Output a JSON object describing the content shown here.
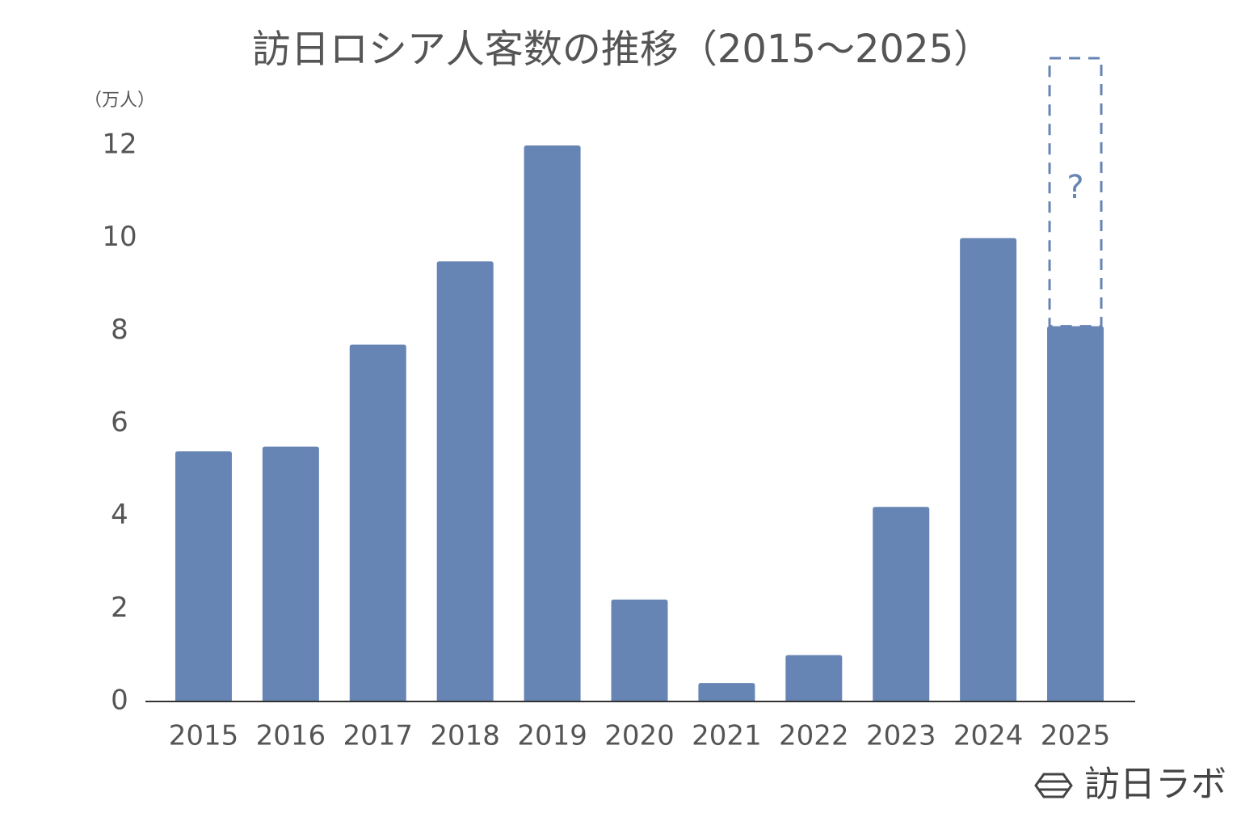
{
  "chart_data": {
    "type": "bar",
    "title": "訪日ロシア人客数の推移（2015～2025）",
    "y_axis_label": "（万人）",
    "categories": [
      "2015",
      "2016",
      "2017",
      "2018",
      "2019",
      "2020",
      "2021",
      "2022",
      "2023",
      "2024",
      "2025"
    ],
    "values": [
      5.4,
      5.5,
      7.7,
      9.5,
      12.0,
      2.2,
      0.4,
      1.0,
      4.2,
      10.0,
      8.1
    ],
    "color": "#6785b4",
    "ylim": [
      0,
      12
    ],
    "yticks": [
      0,
      2,
      4,
      6,
      8,
      10,
      12
    ],
    "grid": false,
    "annotation": "?",
    "watermark": "訪日ラボ"
  }
}
